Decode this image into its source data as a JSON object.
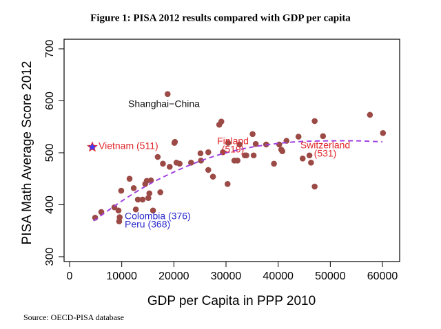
{
  "chart_data": {
    "type": "scatter",
    "title": "Figure 1: PISA 2012 results compared with GDP per capita",
    "source": "Source: OECD-PISA database",
    "x_label": "GDP per Capita in PPP 2010",
    "y_label": "PISA Math Average Score 2012",
    "xlim": [
      -1057,
      63300
    ],
    "ylim": [
      290.7,
      718.5
    ],
    "xticks": [
      0,
      10000,
      20000,
      30000,
      40000,
      50000,
      60000
    ],
    "yticks": [
      300,
      400,
      500,
      600,
      700
    ],
    "series": [
      {
        "type": "scatter",
        "marker": "circle",
        "color": "#9b4a46",
        "x": [
          4900,
          6080,
          8590,
          9380,
          9600,
          9500,
          9900,
          11500,
          12300,
          12700,
          13100,
          14000,
          14500,
          14800,
          15100,
          15300,
          15600,
          16000,
          16900,
          17400,
          17900,
          18800,
          19200,
          20100,
          20200,
          20500,
          21100,
          23300,
          25100,
          25200,
          26600,
          26600,
          27500,
          28700,
          29100,
          29400,
          30300,
          30400,
          31600,
          32200,
          32600,
          33600,
          33900,
          35100,
          35300,
          35700,
          37700,
          39200,
          40200,
          40600,
          40800,
          41600,
          43900,
          44700,
          46000,
          46300,
          47000,
          47000,
          48600,
          57600,
          60100
        ],
        "values": [
          375,
          386,
          395,
          389,
          376,
          368,
          427,
          450,
          432,
          391,
          410,
          410,
          440,
          446,
          413,
          422,
          447,
          389,
          492,
          424,
          479,
          613,
          473,
          519,
          521,
          481,
          479,
          481,
          499,
          485,
          501,
          467,
          454,
          554,
          560,
          501,
          440,
          519,
          485,
          485,
          516,
          495,
          495,
          536,
          495,
          517,
          516,
          479,
          516,
          506,
          503,
          523,
          531,
          489,
          495,
          481,
          561,
          435,
          532,
          573,
          538
        ]
      },
      {
        "type": "scatter",
        "marker": "star",
        "color": "#3a3aff",
        "stroke": "#e0262a",
        "x": [
          4360
        ],
        "values": [
          511
        ]
      },
      {
        "type": "line",
        "color": "#a040e0",
        "dash": true,
        "x": [
          4600,
          10000,
          15000,
          20000,
          25000,
          30000,
          35000,
          40000,
          45000,
          50000,
          55000,
          60000
        ],
        "values": [
          369,
          407,
          438,
          463,
          484,
          500,
          511,
          518,
          522,
          523,
          523,
          521
        ]
      }
    ],
    "annotations": [
      {
        "lines": [
          "Shanghai−China"
        ],
        "color": "#111111"
      },
      {
        "lines": [
          "Vietnam (511)"
        ],
        "color": "#e0262a"
      },
      {
        "lines": [
          "Finland",
          "(519)"
        ],
        "color": "#e0262a"
      },
      {
        "lines": [
          "Switzerland",
          "(531)"
        ],
        "color": "#e0262a"
      },
      {
        "lines": [
          "Colombia (376)"
        ],
        "color": "#2a2acc"
      },
      {
        "lines": [
          "Peru (368)"
        ],
        "color": "#2a2acc"
      }
    ]
  }
}
